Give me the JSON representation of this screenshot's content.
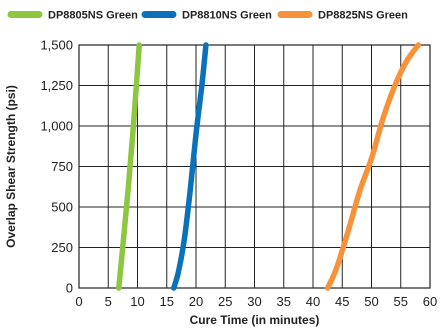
{
  "chart_data": {
    "type": "line",
    "title": "",
    "xlabel": "Cure Time (in minutes)",
    "ylabel": "Overlap Shear Strength (psi)",
    "xlim": [
      0,
      60
    ],
    "ylim": [
      0,
      1500
    ],
    "x_ticks": [
      0,
      5,
      10,
      15,
      20,
      25,
      30,
      35,
      40,
      45,
      50,
      55,
      60
    ],
    "x_tick_labels": [
      "0",
      "5",
      "10",
      "15",
      "20",
      "25",
      "30",
      "35",
      "40",
      "45",
      "50",
      "55",
      "60"
    ],
    "y_ticks": [
      0,
      250,
      500,
      750,
      1000,
      1250,
      1500
    ],
    "y_tick_labels": [
      "0",
      "250",
      "500",
      "750",
      "1,000",
      "1,250",
      "1,500"
    ],
    "grid": true,
    "legend_position": "top",
    "series": [
      {
        "name": "DP8805NS Green",
        "color": "#8dc63f",
        "points": [
          [
            6.8,
            0
          ],
          [
            7.6,
            300
          ],
          [
            8.5,
            650
          ],
          [
            9.3,
            1000
          ],
          [
            10.0,
            1350
          ],
          [
            10.3,
            1500
          ]
        ]
      },
      {
        "name": "DP8810NS Green",
        "color": "#0a72ba",
        "points": [
          [
            16.2,
            0
          ],
          [
            17.0,
            100
          ],
          [
            18.0,
            300
          ],
          [
            19.0,
            600
          ],
          [
            20.0,
            950
          ],
          [
            21.0,
            1250
          ],
          [
            21.7,
            1500
          ]
        ]
      },
      {
        "name": "DP8825NS Green",
        "color": "#f7923a",
        "points": [
          [
            42.5,
            0
          ],
          [
            44.0,
            120
          ],
          [
            46.0,
            350
          ],
          [
            48.0,
            600
          ],
          [
            50.0,
            800
          ],
          [
            52.0,
            1050
          ],
          [
            54.0,
            1250
          ],
          [
            56.0,
            1400
          ],
          [
            58.0,
            1500
          ]
        ]
      }
    ]
  }
}
